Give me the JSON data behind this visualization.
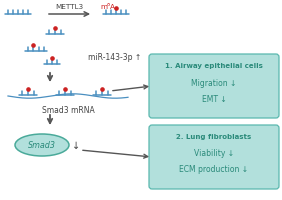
{
  "bg_color": "#ffffff",
  "box1_color": "#b2e0dc",
  "box2_color": "#b2e0dc",
  "box_border": "#5ab8ae",
  "smad3_oval_color": "#b2e0dc",
  "smad3_oval_border": "#4aaa9a",
  "rna_color": "#4a8fc0",
  "dot_color": "#cc2222",
  "arrow_color": "#555555",
  "text_color": "#444444",
  "box_text_color": "#2a8a7a",
  "mettl3_label": "METTL3",
  "m6a_label": "m⁶A",
  "mir_label": "miR-143-3p ↑",
  "smad3mrna_label": "Smad3 mRNA",
  "smad3_label": "Smad3",
  "down_arrow": "↓",
  "box1_title": "1. Airway epithelial cells",
  "box1_line1": "Migration ↓",
  "box1_line2": "EMT ↓",
  "box2_title": "2. Lung fibroblasts",
  "box2_line1": "Viability ↓",
  "box2_line2": "ECM production ↓"
}
